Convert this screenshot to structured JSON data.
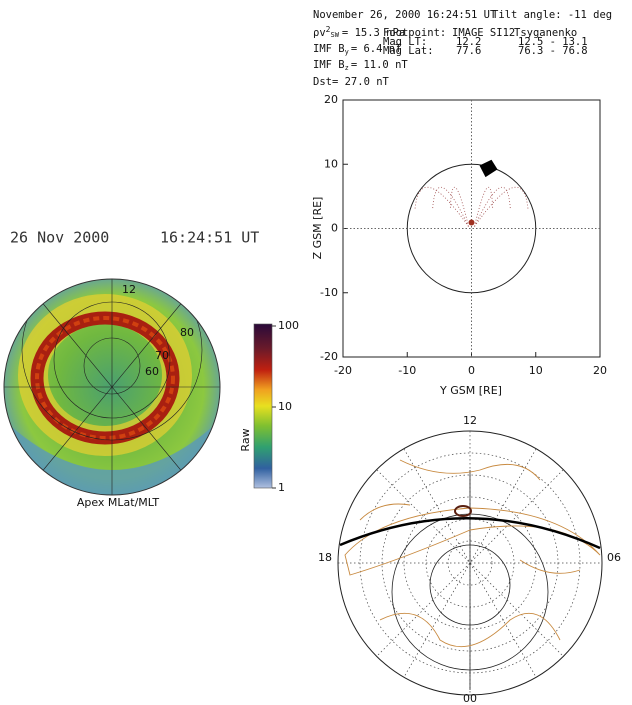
{
  "header": {
    "date_line": "November 26, 2000 16:24:51 UT",
    "tilt": "Tilt angle: -11 deg",
    "pressure": {
      "label": "ρv",
      "sup": "2",
      "sub": "SW",
      "value": "= 15.3 nPa"
    },
    "imf_by": {
      "label": "IMF B",
      "sub": "y",
      "value": "= 6.4 nT"
    },
    "imf_bz": {
      "label": "IMF B",
      "sub": "z",
      "value": "= 11.0 nT"
    },
    "dst": "Dst= 27.0 nT",
    "footpoint": [
      [
        "Footpoint:",
        "IMAGE SI12",
        "Tsyganenko"
      ],
      [
        "Mag LT:",
        "12.2",
        "12.5 - 13.1"
      ],
      [
        "Mag Lat:",
        "77.6",
        "76.3 - 76.8"
      ]
    ]
  },
  "left": {
    "date": "26 Nov 2000",
    "time": "16:24:51 UT",
    "aurora_labels": [
      "12",
      "80",
      "70",
      "60"
    ],
    "caption": "Apex MLat/MLT",
    "colorbar": {
      "label": "Raw",
      "ticks": [
        100,
        10,
        1
      ]
    }
  },
  "gsm": {
    "xlabel": "Y GSM [RE]",
    "ylabel": "Z GSM [RE]",
    "xticks": [
      -20,
      -10,
      0,
      10,
      20
    ],
    "yticks": [
      -20,
      -10,
      0,
      10,
      20
    ]
  },
  "map": {
    "labels": [
      "12",
      "18",
      "06",
      "00"
    ]
  }
}
